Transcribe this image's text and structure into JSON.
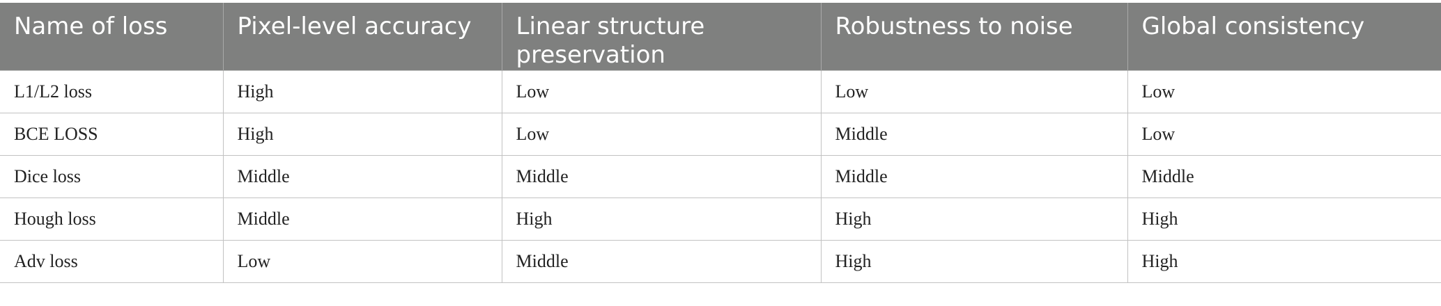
{
  "table": {
    "header": [
      "Name of loss",
      "Pixel-level accuracy",
      "Linear structure preservation",
      "Robustness to noise",
      "Global consistency"
    ],
    "rows": [
      [
        "L1/L2 loss",
        "High",
        "Low",
        "Low",
        "Low"
      ],
      [
        "BCE LOSS",
        "High",
        "Low",
        "Middle",
        "Low"
      ],
      [
        "Dice loss",
        "Middle",
        "Middle",
        "Middle",
        "Middle"
      ],
      [
        "Hough loss",
        "Middle",
        "High",
        "High",
        "High"
      ],
      [
        "Adv loss",
        "Low",
        "Middle",
        "High",
        "High"
      ]
    ]
  }
}
